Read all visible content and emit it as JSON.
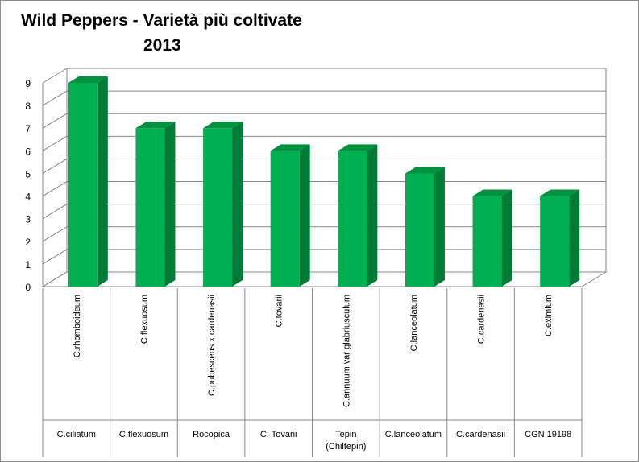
{
  "chart_data": {
    "type": "bar",
    "title_line1": "Wild Peppers - Varietà più coltivate",
    "title_line2": "2013",
    "categories": [
      "C.rhomboideum",
      "C.flexuosum",
      "C.pubescens x cardenasii",
      "C.tovarii",
      "C.annuum var glabriusculum",
      "C.lanceolatum",
      "C.cardenasii",
      "C.eximium"
    ],
    "secondary_categories": [
      "C.ciliatum",
      "C.flexuosum",
      "Rocopica",
      "C. Tovarii",
      "Tepin\n(Chiltepin)",
      "C.lanceolatum",
      "C.cardenasii",
      "CGN 19198"
    ],
    "values": [
      9,
      7,
      7,
      6,
      6,
      5,
      4,
      4
    ],
    "ylim": [
      0,
      9
    ],
    "yticks": [
      0,
      1,
      2,
      3,
      4,
      5,
      6,
      7,
      8,
      9
    ],
    "grid": true,
    "legend": "none",
    "colors": {
      "bar_front": "#00b050",
      "bar_side": "#007a37",
      "bar_top": "#00923f",
      "grid": "#868686",
      "frame": "#8c8c8c"
    }
  }
}
